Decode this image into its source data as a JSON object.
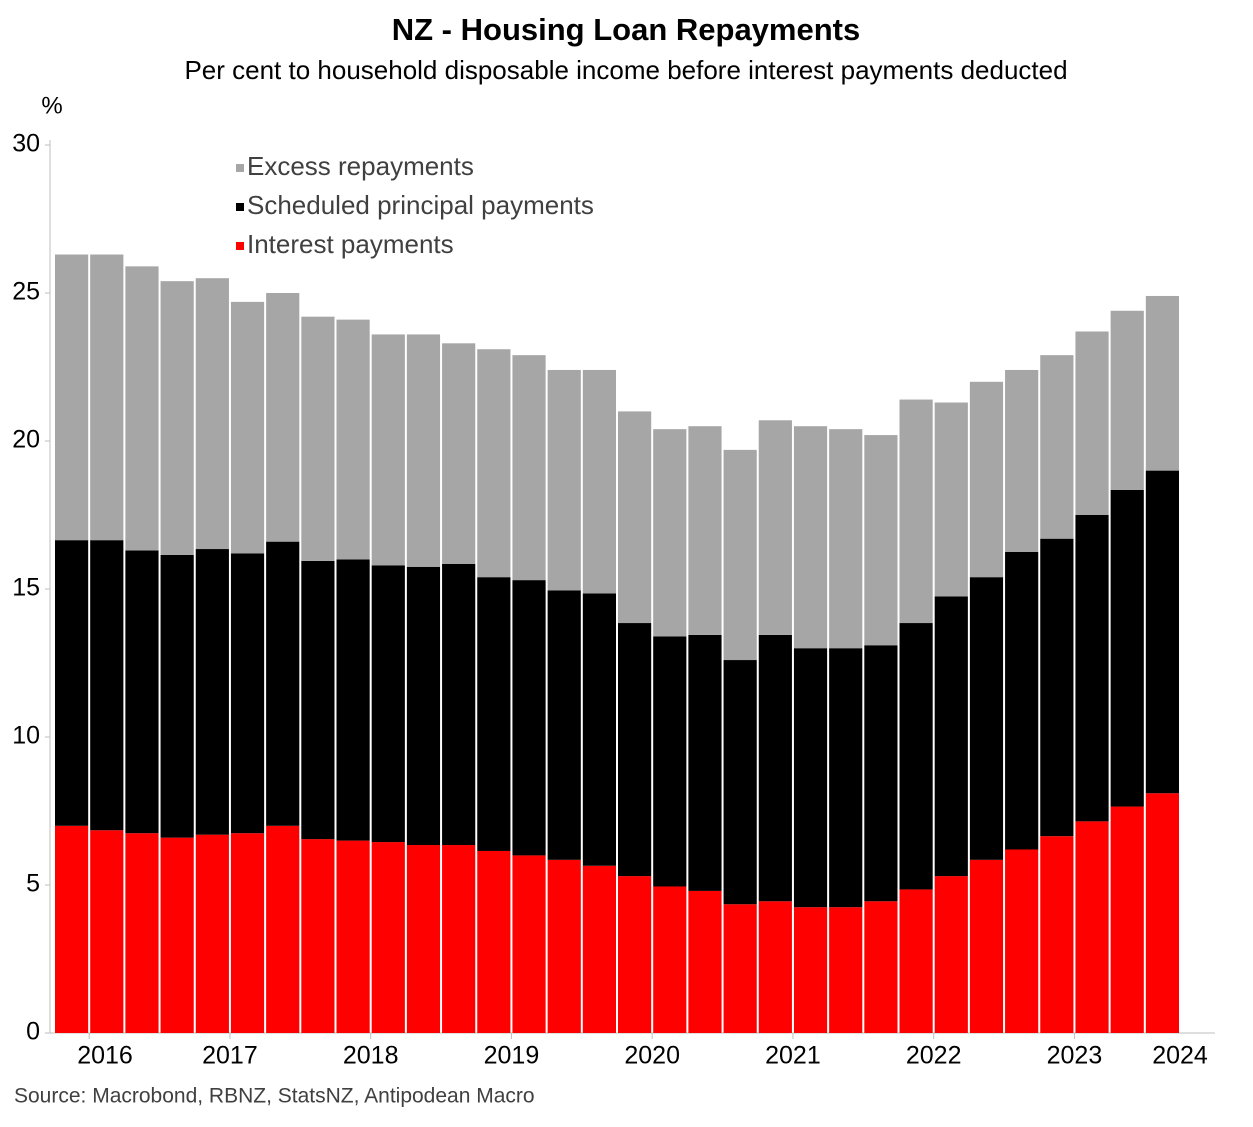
{
  "chart_data": {
    "type": "stacked-bar",
    "title": "NZ - Housing Loan Repayments",
    "subtitle": "Per cent to household disposable income before interest payments deducted",
    "y_unit_label": "%",
    "source": "Source: Macrobond, RBNZ, StatsNZ, Antipodean Macro",
    "categories": [
      null,
      "2016",
      null,
      null,
      null,
      "2017",
      null,
      null,
      null,
      "2018",
      null,
      null,
      null,
      "2019",
      null,
      null,
      null,
      "2020",
      null,
      null,
      null,
      "2021",
      null,
      null,
      null,
      "2022",
      null,
      null,
      null,
      "2023",
      null,
      null
    ],
    "x_axis_end_label": "2024",
    "series": [
      {
        "name": "Interest payments",
        "color": "#ff0000",
        "values": [
          7.0,
          6.85,
          6.75,
          6.6,
          6.7,
          6.75,
          7.0,
          6.55,
          6.5,
          6.45,
          6.35,
          6.35,
          6.15,
          6.0,
          5.85,
          5.65,
          5.3,
          4.95,
          4.8,
          4.35,
          4.45,
          4.25,
          4.25,
          4.45,
          4.85,
          5.3,
          5.85,
          6.2,
          6.65,
          7.15,
          7.65,
          8.1
        ]
      },
      {
        "name": "Scheduled principal payments",
        "color": "#000000",
        "values": [
          9.65,
          9.8,
          9.55,
          9.55,
          9.65,
          9.45,
          9.6,
          9.4,
          9.5,
          9.35,
          9.4,
          9.5,
          9.25,
          9.3,
          9.1,
          9.2,
          8.55,
          8.45,
          8.65,
          8.25,
          9.0,
          8.75,
          8.75,
          8.65,
          9.0,
          9.45,
          9.55,
          10.05,
          10.05,
          10.35,
          10.7,
          10.9
        ]
      },
      {
        "name": "Excess repayments",
        "color": "#a6a6a6",
        "values": [
          9.65,
          9.65,
          9.6,
          9.25,
          9.15,
          8.5,
          8.4,
          8.25,
          8.1,
          7.8,
          7.85,
          7.45,
          7.7,
          7.6,
          7.45,
          7.55,
          7.15,
          7.0,
          7.05,
          7.1,
          7.25,
          7.5,
          7.4,
          7.1,
          7.55,
          6.55,
          6.6,
          6.15,
          6.2,
          6.2,
          6.05,
          5.9
        ]
      }
    ],
    "ylim": [
      0,
      30
    ],
    "yticks": [
      0,
      5,
      10,
      15,
      20,
      25,
      30
    ],
    "grid": false
  }
}
